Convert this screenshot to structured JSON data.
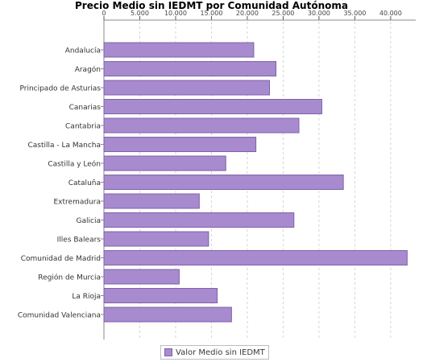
{
  "chart_data": {
    "type": "bar",
    "orientation": "horizontal",
    "title": "Precio Medio sin IEDMT por Comunidad Autónoma",
    "xlabel": "",
    "ylabel": "",
    "xlim": [
      0,
      43500
    ],
    "tick_values": [
      0,
      5000,
      10000,
      15000,
      20000,
      25000,
      30000,
      35000,
      40000
    ],
    "tick_labels": [
      "0",
      "5.000",
      "10.000",
      "15.000",
      "20.000",
      "25.000",
      "30.000",
      "35.000",
      "40.000"
    ],
    "grid": true,
    "legend_position": "bottom",
    "categories": [
      "Andalucía",
      "Aragón",
      "Principado de Asturias",
      "Canarias",
      "Cantabria",
      "Castilla - La Mancha",
      "Castilla y León",
      "Cataluña",
      "Extremadura",
      "Galicia",
      "Illes Balears",
      "Comunidad de Madrid",
      "Región de Murcia",
      "La Rioja",
      "Comunidad Valenciana"
    ],
    "series": [
      {
        "name": "Valor Medio sin IEDMT",
        "values": [
          20900,
          24000,
          23100,
          30400,
          27200,
          21200,
          17000,
          33400,
          13300,
          26500,
          14600,
          42300,
          10500,
          15800,
          17800
        ],
        "color": "#a88ace"
      }
    ]
  }
}
